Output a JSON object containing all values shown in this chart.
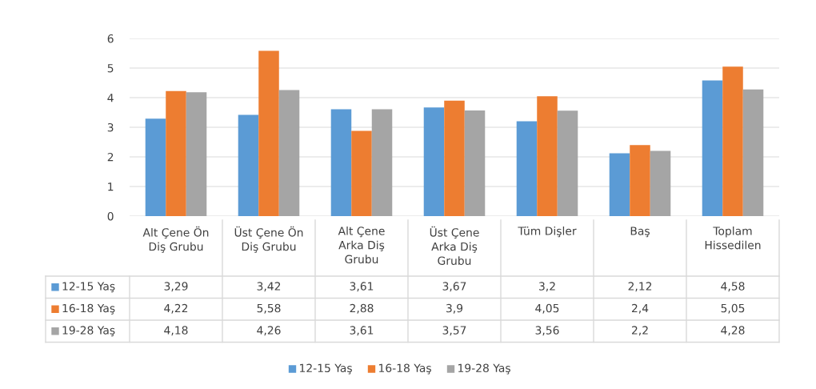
{
  "chart_data": {
    "type": "bar",
    "categories": [
      "Alt Çene Ön Diş Grubu",
      "Üst Çene Ön Diş Grubu",
      "Alt Çene Arka Diş Grubu",
      "Üst Çene Arka Diş Grubu",
      "Tüm Dişler",
      "Baş",
      "Toplam Hissedilen"
    ],
    "series": [
      {
        "name": "12-15 Yaş",
        "color": "#5b9bd5",
        "values": [
          3.29,
          3.42,
          3.61,
          3.67,
          3.2,
          2.12,
          4.58
        ],
        "value_labels": [
          "3,29",
          "3,42",
          "3,61",
          "3,67",
          "3,2",
          "2,12",
          "4,58"
        ]
      },
      {
        "name": "16-18 Yaş",
        "color": "#ed7d31",
        "values": [
          4.22,
          5.58,
          2.88,
          3.9,
          4.05,
          2.4,
          5.05
        ],
        "value_labels": [
          "4,22",
          "5,58",
          "2,88",
          "3,9",
          "4,05",
          "2,4",
          "5,05"
        ]
      },
      {
        "name": "19-28 Yaş",
        "color": "#a5a5a5",
        "values": [
          4.18,
          4.26,
          3.61,
          3.57,
          3.56,
          2.2,
          4.28
        ],
        "value_labels": [
          "4,18",
          "4,26",
          "3,61",
          "3,57",
          "3,56",
          "2,2",
          "4,28"
        ]
      }
    ],
    "ylim": [
      0,
      6
    ],
    "yticks": [
      0,
      1,
      2,
      3,
      4,
      5,
      6
    ],
    "grid": "y",
    "legend": "bottom"
  }
}
